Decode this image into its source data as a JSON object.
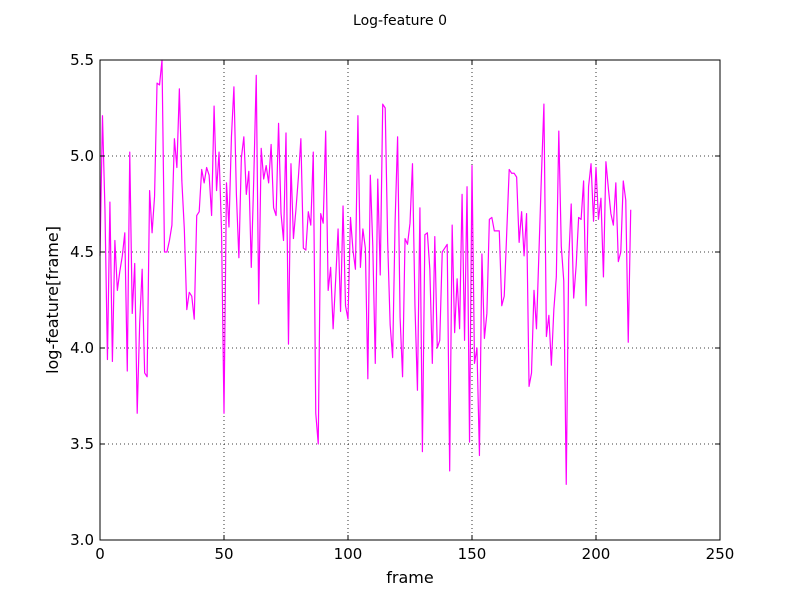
{
  "chart_data": {
    "type": "line",
    "title": "Log-feature 0",
    "xlabel": "frame",
    "ylabel": "log-feature[frame]",
    "xlim": [
      0,
      250
    ],
    "ylim": [
      3.0,
      5.5
    ],
    "x_ticks": [
      0,
      50,
      100,
      150,
      200,
      250
    ],
    "y_ticks": [
      3.0,
      3.5,
      4.0,
      4.5,
      5.0,
      5.5
    ],
    "x_tick_labels": [
      "0",
      "50",
      "100",
      "150",
      "200",
      "250"
    ],
    "y_tick_labels": [
      "3.0",
      "3.5",
      "4.0",
      "4.5",
      "5.0",
      "5.5"
    ],
    "grid": true,
    "series": [
      {
        "color": "#ff00ff",
        "x_start": 0,
        "x_step": 1,
        "values": [
          4.48,
          5.21,
          4.72,
          3.94,
          4.76,
          3.93,
          4.56,
          4.3,
          4.4,
          4.48,
          4.6,
          3.88,
          5.02,
          4.18,
          4.44,
          3.66,
          4.13,
          4.41,
          3.87,
          3.85,
          4.82,
          4.6,
          4.79,
          5.38,
          5.37,
          5.5,
          4.5,
          4.5,
          4.56,
          4.64,
          5.09,
          4.94,
          5.35,
          4.87,
          4.62,
          4.2,
          4.29,
          4.27,
          4.15,
          4.69,
          4.71,
          4.93,
          4.86,
          4.94,
          4.9,
          4.69,
          5.26,
          4.82,
          5.02,
          4.61,
          3.66,
          4.86,
          4.63,
          5.1,
          5.36,
          4.8,
          4.47,
          4.99,
          5.1,
          4.8,
          4.92,
          4.42,
          4.88,
          5.42,
          4.23,
          5.04,
          4.88,
          4.95,
          4.86,
          5.06,
          4.73,
          4.69,
          5.17,
          4.7,
          4.56,
          5.12,
          4.02,
          4.96,
          4.57,
          4.72,
          4.89,
          5.09,
          4.52,
          4.51,
          4.71,
          4.64,
          5.02,
          3.66,
          3.5,
          4.7,
          4.65,
          5.13,
          4.3,
          4.42,
          4.1,
          4.35,
          4.62,
          4.19,
          4.74,
          4.22,
          4.15,
          4.68,
          4.51,
          4.41,
          5.21,
          4.42,
          4.62,
          4.52,
          3.84,
          4.9,
          4.53,
          3.92,
          4.88,
          4.38,
          5.27,
          5.25,
          4.55,
          4.12,
          3.95,
          4.66,
          5.1,
          4.16,
          3.85,
          4.57,
          4.54,
          4.65,
          4.96,
          4.22,
          3.78,
          4.73,
          3.46,
          4.59,
          4.6,
          4.41,
          3.92,
          4.58,
          4.0,
          4.04,
          4.5,
          4.52,
          4.54,
          3.36,
          4.64,
          4.08,
          4.36,
          4.1,
          4.8,
          4.04,
          4.84,
          3.51,
          4.95,
          3.92,
          4.0,
          3.44,
          4.49,
          4.05,
          4.18,
          4.67,
          4.68,
          4.61,
          4.61,
          4.61,
          4.22,
          4.27,
          4.6,
          4.93,
          4.91,
          4.91,
          4.89,
          4.55,
          4.71,
          4.48,
          4.7,
          3.8,
          3.87,
          4.3,
          4.1,
          4.5,
          4.9,
          5.27,
          4.06,
          4.17,
          3.91,
          4.2,
          4.37,
          5.13,
          4.53,
          4.35,
          3.29,
          4.46,
          4.75,
          4.26,
          4.43,
          4.68,
          4.67,
          4.87,
          4.22,
          4.84,
          4.96,
          4.66,
          4.94,
          4.67,
          4.78,
          4.37,
          4.97,
          4.83,
          4.7,
          4.64,
          4.86,
          4.45,
          4.5,
          4.87,
          4.77,
          4.03,
          4.72
        ]
      }
    ]
  }
}
